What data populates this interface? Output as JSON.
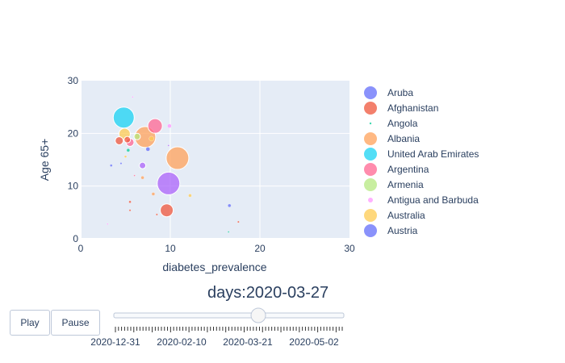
{
  "chart_data": {
    "type": "scatter",
    "xlabel": "diabetes_prevalence",
    "ylabel": "Age 65+",
    "xlim": [
      0,
      30
    ],
    "ylim": [
      0,
      30
    ],
    "xticks": [
      "0",
      "10",
      "20",
      "30"
    ],
    "yticks": [
      "0",
      "10",
      "20",
      "30"
    ],
    "grid": true,
    "legend_position": "right",
    "legend": [
      {
        "name": "Aruba",
        "color": "#636efa"
      },
      {
        "name": "Afghanistan",
        "color": "#ef553b"
      },
      {
        "name": "Angola",
        "color": "#00cc96"
      },
      {
        "name": "Albania",
        "color": "#ffa15a"
      },
      {
        "name": "United Arab Emirates",
        "color": "#19d3f3"
      },
      {
        "name": "Argentina",
        "color": "#ff6692"
      },
      {
        "name": "Armenia",
        "color": "#b6e880"
      },
      {
        "name": "Antigua and Barbuda",
        "color": "#ff97ff"
      },
      {
        "name": "Australia",
        "color": "#fecb52"
      },
      {
        "name": "Austria",
        "color": "#636efa"
      }
    ],
    "points": [
      {
        "x": 4.8,
        "y": 23.0,
        "r": 13,
        "color": "#19d3f3"
      },
      {
        "x": 10.8,
        "y": 15.3,
        "r": 14,
        "color": "#ffa15a"
      },
      {
        "x": 9.8,
        "y": 10.5,
        "r": 14,
        "color": "#ab63fa"
      },
      {
        "x": 7.2,
        "y": 19.3,
        "r": 13,
        "color": "#ffa15a"
      },
      {
        "x": 8.3,
        "y": 21.4,
        "r": 9,
        "color": "#ff6692"
      },
      {
        "x": 9.6,
        "y": 5.4,
        "r": 8,
        "color": "#ef553b"
      },
      {
        "x": 4.9,
        "y": 19.9,
        "r": 7,
        "color": "#fecb52"
      },
      {
        "x": 4.3,
        "y": 18.6,
        "r": 5,
        "color": "#ef553b"
      },
      {
        "x": 5.5,
        "y": 18.3,
        "r": 5,
        "color": "#ff6692"
      },
      {
        "x": 5.2,
        "y": 18.8,
        "r": 4,
        "color": "#ef553b"
      },
      {
        "x": 6.9,
        "y": 13.9,
        "r": 4,
        "color": "#ab63fa"
      },
      {
        "x": 6.3,
        "y": 19.4,
        "r": 4,
        "color": "#b6e880"
      },
      {
        "x": 7.5,
        "y": 17.0,
        "r": 2.5,
        "color": "#636efa"
      },
      {
        "x": 9.9,
        "y": 21.4,
        "r": 2.5,
        "color": "#ff97ff"
      },
      {
        "x": 7.9,
        "y": 19.0,
        "r": 3,
        "color": "#fecb52"
      },
      {
        "x": 5.3,
        "y": 16.8,
        "r": 2,
        "color": "#00cc96"
      },
      {
        "x": 6.9,
        "y": 11.6,
        "r": 2,
        "color": "#ffa15a"
      },
      {
        "x": 8.1,
        "y": 8.5,
        "r": 2,
        "color": "#ffa15a"
      },
      {
        "x": 12.2,
        "y": 8.2,
        "r": 2,
        "color": "#fecb52"
      },
      {
        "x": 16.6,
        "y": 6.3,
        "r": 2,
        "color": "#636efa"
      },
      {
        "x": 3.4,
        "y": 13.9,
        "r": 1.5,
        "color": "#636efa"
      },
      {
        "x": 4.5,
        "y": 14.3,
        "r": 1.2,
        "color": "#636efa"
      },
      {
        "x": 5.0,
        "y": 15.6,
        "r": 1.5,
        "color": "#fecb52"
      },
      {
        "x": 5.5,
        "y": 7.0,
        "r": 1.5,
        "color": "#ef553b"
      },
      {
        "x": 5.5,
        "y": 5.4,
        "r": 1.2,
        "color": "#ef553b"
      },
      {
        "x": 8.5,
        "y": 4.6,
        "r": 1.2,
        "color": "#ef553b"
      },
      {
        "x": 17.6,
        "y": 3.2,
        "r": 1.2,
        "color": "#ef553b"
      },
      {
        "x": 5.8,
        "y": 26.9,
        "r": 1,
        "color": "#ff97ff"
      },
      {
        "x": 9.8,
        "y": 17.7,
        "r": 1,
        "color": "#ab63fa"
      },
      {
        "x": 3.0,
        "y": 2.8,
        "r": 1,
        "color": "#ff97ff"
      },
      {
        "x": 16.5,
        "y": 1.3,
        "r": 1,
        "color": "#00cc96"
      },
      {
        "x": 6.0,
        "y": 12.0,
        "r": 1,
        "color": "#ff6692"
      }
    ]
  },
  "slider": {
    "prefix": "days:",
    "current": "2020-03-27",
    "labels": [
      "2020-12-31",
      "2020-02-10",
      "2020-03-21",
      "2020-05-02"
    ],
    "value_fraction": 0.63
  },
  "buttons": {
    "play": "Play",
    "pause": "Pause"
  }
}
